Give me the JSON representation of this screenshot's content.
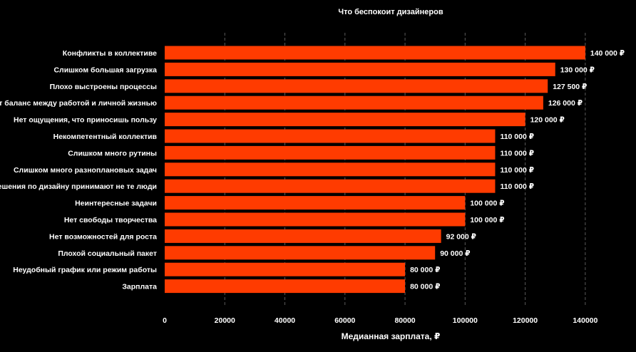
{
  "chart_data": {
    "type": "bar",
    "orientation": "horizontal",
    "title": "Что беспокоит дизайнеров",
    "xlabel": "Медианная зарплата, ₽",
    "ylabel": "",
    "xlim": [
      0,
      150000
    ],
    "grid": true,
    "bar_color": "#FF3B00",
    "x_ticks": [
      "0",
      "20000",
      "40000",
      "60000",
      "80000",
      "100000",
      "120000",
      "140000"
    ],
    "categories": [
      "Конфликты в коллективе",
      "Слишком большая загрузка",
      "Плохо выстроены процессы",
      "Отсутствует баланс между работой и личной жизнью",
      "Нет ощущения, что приносишь пользу",
      "Некомпетентный коллектив",
      "Слишком много рутины",
      "Слишком много разноплановых задач",
      "Решения по дизайну принимают не те люди",
      "Неинтересные задачи",
      "Нет свободы творчества",
      "Нет возможностей для роста",
      "Плохой социальный пакет",
      "Неудобный график или режим работы",
      "Зарплата"
    ],
    "values": [
      140000,
      130000,
      127500,
      126000,
      120000,
      110000,
      110000,
      110000,
      110000,
      100000,
      100000,
      92000,
      90000,
      80000,
      80000
    ],
    "value_labels": [
      "140 000 ₽",
      "130 000 ₽",
      "127 500 ₽",
      "126 000 ₽",
      "120 000 ₽",
      "110 000 ₽",
      "110 000 ₽",
      "110 000 ₽",
      "110 000 ₽",
      "100 000 ₽",
      "100 000 ₽",
      "92 000 ₽",
      "90 000 ₽",
      "80 000 ₽",
      "80 000 ₽"
    ]
  }
}
